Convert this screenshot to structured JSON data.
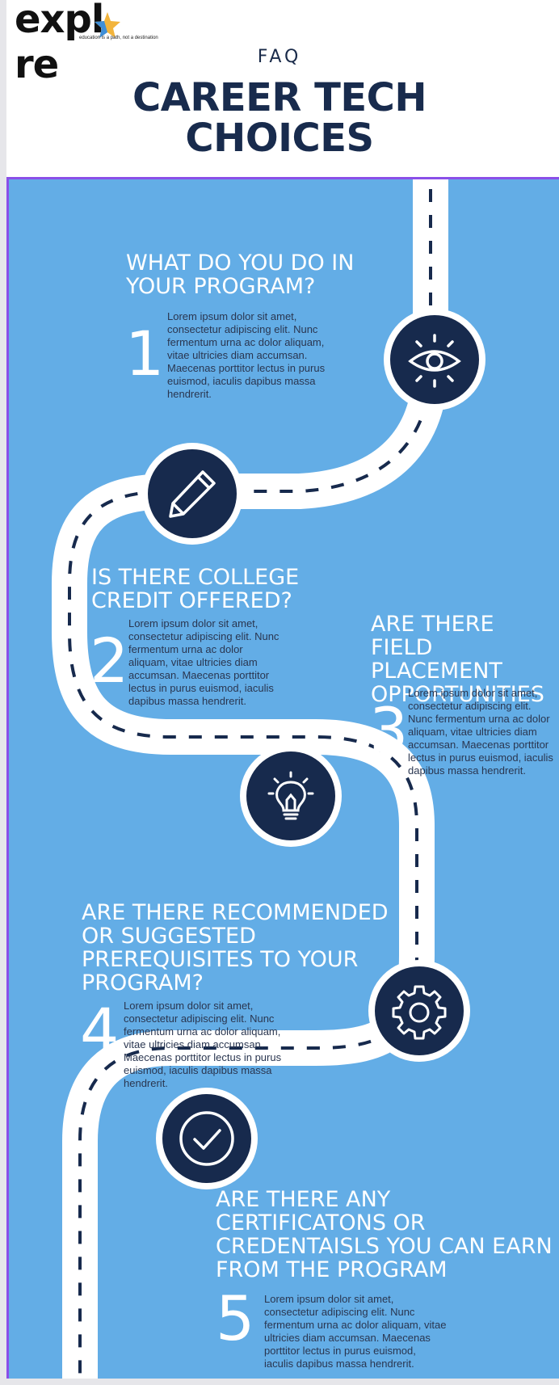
{
  "header": {
    "logo_text": "expl re",
    "logo_tagline": "education is a path, not a destination",
    "faq_label": "FAQ",
    "title_line1": "CAREER TECH",
    "title_line2": "CHOICES"
  },
  "colors": {
    "panel": "#63ade6",
    "navy": "#172a4d",
    "road": "#ffffff",
    "border_accent": "#8a4fe8",
    "star_gold": "#f2b43c",
    "star_blue": "#3f8fd8"
  },
  "steps": [
    {
      "number": "1",
      "title_lines": [
        "WHAT DO YOU DO IN",
        "YOUR PROGRAM?"
      ],
      "body": "Lorem ipsum dolor sit amet, consectetur adipiscing elit. Nunc fermentum urna ac dolor aliquam, vitae ultricies diam accumsan. Maecenas porttitor lectus in purus euismod, iaculis dapibus massa hendrerit.",
      "icon": "eye-icon"
    },
    {
      "number": "2",
      "title_lines": [
        "IS THERE COLLEGE",
        "CREDIT OFFERED?"
      ],
      "body": "Lorem ipsum dolor sit amet, consectetur adipiscing elit. Nunc fermentum urna ac dolor aliquam, vitae ultricies diam accumsan. Maecenas porttitor lectus in purus euismod, iaculis dapibus massa hendrerit.",
      "icon": "pencil-icon"
    },
    {
      "number": "3",
      "title_lines": [
        "ARE THERE FIELD",
        "PLACEMENT",
        "OPPORTUNITIES"
      ],
      "body": "Lorem ipsum dolor sit amet, consectetur adipiscing elit. Nunc fermentum urna ac dolor aliquam, vitae ultricies diam accumsan. Maecenas porttitor lectus in purus euismod, iaculis dapibus massa hendrerit.",
      "icon": "lightbulb-icon"
    },
    {
      "number": "4",
      "title_lines": [
        "ARE THERE RECOMMENDED",
        "OR SUGGESTED",
        "PREREQUISITES TO YOUR",
        "PROGRAM?"
      ],
      "body": "Lorem ipsum dolor sit amet, consectetur adipiscing elit. Nunc fermentum urna ac dolor aliquam, vitae ultricies diam accumsan. Maecenas porttitor lectus in purus euismod, iaculis dapibus massa hendrerit.",
      "icon": "gear-icon"
    },
    {
      "number": "5",
      "title_lines": [
        "ARE THERE ANY",
        "CERTIFICATONS OR",
        "CREDENTAISLS YOU CAN EARN",
        "FROM THE PROGRAM"
      ],
      "body": "Lorem ipsum dolor sit amet, consectetur adipiscing elit. Nunc fermentum urna ac dolor aliquam, vitae ultricies diam accumsan. Maecenas porttitor lectus in purus euismod, iaculis dapibus massa hendrerit.",
      "icon": "checkmark-icon"
    }
  ]
}
